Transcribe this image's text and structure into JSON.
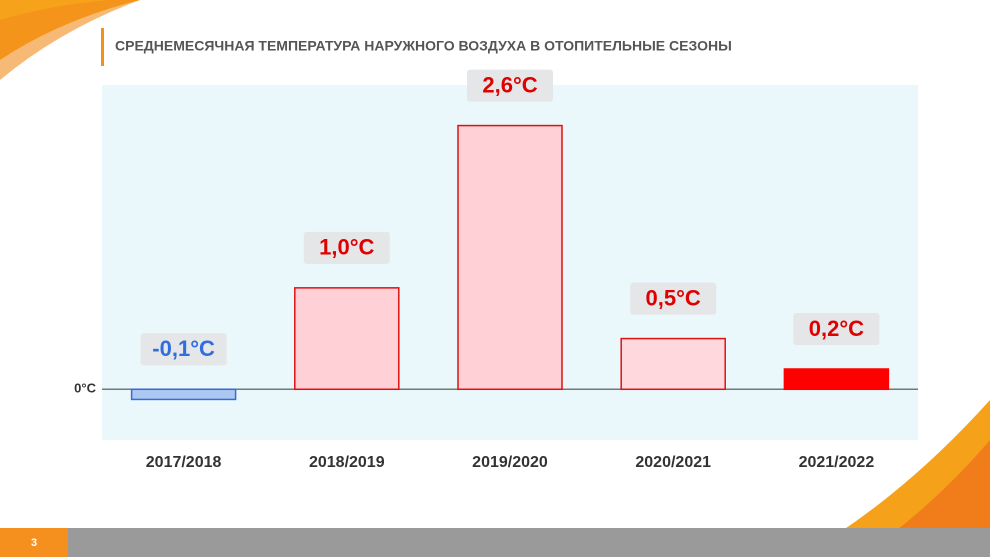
{
  "chart_data": {
    "type": "bar",
    "title": "СРЕДНЕМЕСЯЧНАЯ ТЕМПЕРАТУРА НАРУЖНОГО ВОЗДУХА В ОТОПИТЕЛЬНЫЕ СЕЗОНЫ",
    "categories": [
      "2017/2018",
      "2018/2019",
      "2019/2020",
      "2020/2021",
      "2021/2022"
    ],
    "values": [
      -0.1,
      1.0,
      2.6,
      0.5,
      0.2
    ],
    "value_labels": [
      "-0,1°C",
      "1,0°C",
      "2,6°C",
      "0,5°C",
      "0,2°C"
    ],
    "colors": [
      "#aac8f2",
      "#ffd0d5",
      "#ffd0d5",
      "#ffd8de",
      "#ff0000"
    ],
    "stroke_colors": [
      "#3a6ad8",
      "#e01010",
      "#e01010",
      "#e01010",
      "#ff0000"
    ],
    "label_colors": [
      "#2f6de0",
      "#e00000",
      "#e00000",
      "#e00000",
      "#e00000"
    ],
    "ylim": [
      -0.5,
      3.0
    ],
    "yticks": [
      {
        "value": 0,
        "label": "0°C"
      }
    ]
  },
  "slide": {
    "page_number": "3"
  }
}
